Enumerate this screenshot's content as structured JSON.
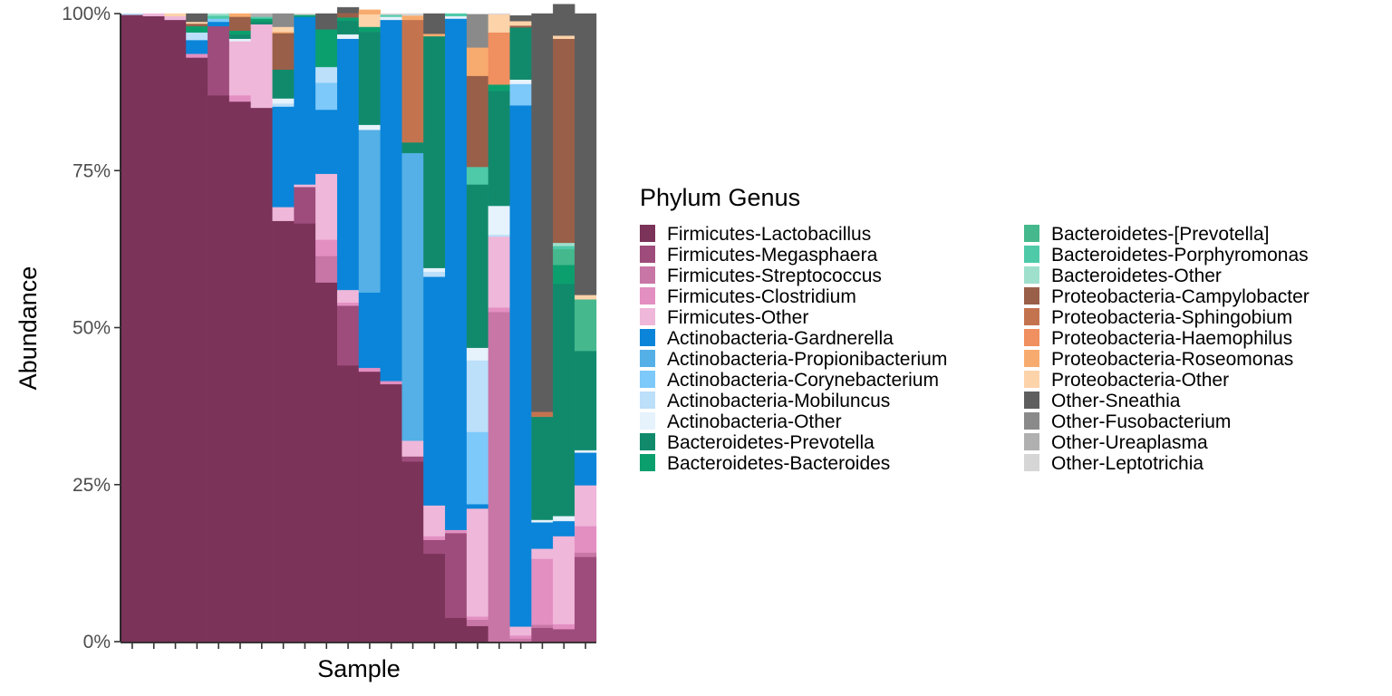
{
  "chart_data": {
    "type": "bar",
    "stacked": true,
    "xlabel": "Sample",
    "ylabel": "Abundance",
    "ylim": [
      0,
      100
    ],
    "y_ticks": [
      {
        "value": 0,
        "label": "0%"
      },
      {
        "value": 25,
        "label": "25%"
      },
      {
        "value": 50,
        "label": "50%"
      },
      {
        "value": 75,
        "label": "75%"
      },
      {
        "value": 100,
        "label": "100%"
      }
    ],
    "x_tick_labels_shown": false,
    "grid": false,
    "legend_title": "Phylum Genus",
    "legend_position": "right",
    "taxa": [
      {
        "name": "Firmicutes-Lactobacillus",
        "color": "#7b3359"
      },
      {
        "name": "Firmicutes-Megasphaera",
        "color": "#9e4c7b"
      },
      {
        "name": "Firmicutes-Streptococcus",
        "color": "#c876a6"
      },
      {
        "name": "Firmicutes-Clostridium",
        "color": "#e38fc2"
      },
      {
        "name": "Firmicutes-Other",
        "color": "#efb7d9"
      },
      {
        "name": "Actinobacteria-Gardnerella",
        "color": "#0a85d9"
      },
      {
        "name": "Actinobacteria-Propionibacterium",
        "color": "#54b0e6"
      },
      {
        "name": "Actinobacteria-Corynebacterium",
        "color": "#7dc9fa"
      },
      {
        "name": "Actinobacteria-Mobiluncus",
        "color": "#bcdffa"
      },
      {
        "name": "Actinobacteria-Other",
        "color": "#e6f2fc"
      },
      {
        "name": "Bacteroidetes-Prevotella",
        "color": "#118a6c"
      },
      {
        "name": "Bacteroidetes-Bacteroides",
        "color": "#0c9f6e"
      },
      {
        "name": "Bacteroidetes-[Prevotella]",
        "color": "#45b88d"
      },
      {
        "name": "Bacteroidetes-Porphyromonas",
        "color": "#4ecaa9"
      },
      {
        "name": "Bacteroidetes-Other",
        "color": "#9fe0cc"
      },
      {
        "name": "Proteobacteria-Campylobacter",
        "color": "#9a5f48"
      },
      {
        "name": "Proteobacteria-Sphingobium",
        "color": "#c4734f"
      },
      {
        "name": "Proteobacteria-Haemophilus",
        "color": "#f08f5f"
      },
      {
        "name": "Proteobacteria-Roseomonas",
        "color": "#f8ab6e"
      },
      {
        "name": "Proteobacteria-Other",
        "color": "#fdd3aa"
      },
      {
        "name": "Other-Sneathia",
        "color": "#5e5e5e"
      },
      {
        "name": "Other-Fusobacterium",
        "color": "#8a8a8a"
      },
      {
        "name": "Other-Ureaplasma",
        "color": "#b0b0b0"
      },
      {
        "name": "Other-Leptotrichia",
        "color": "#d6d6d6"
      }
    ],
    "series_note_keys": "each sample lists stacked segments bottom-to-top as [taxon, percent]",
    "samples": [
      [
        [
          "Firmicutes-Lactobacillus",
          99.8
        ],
        [
          "Actinobacteria-Mobiluncus",
          0.2
        ]
      ],
      [
        [
          "Firmicutes-Lactobacillus",
          99.6
        ],
        [
          "Firmicutes-Other",
          0.4
        ]
      ],
      [
        [
          "Firmicutes-Lactobacillus",
          99.0
        ],
        [
          "Firmicutes-Other",
          0.6
        ],
        [
          "Proteobacteria-Other",
          0.4
        ]
      ],
      [
        [
          "Firmicutes-Lactobacillus",
          93.0
        ],
        [
          "Firmicutes-Clostridium",
          0.6
        ],
        [
          "Actinobacteria-Gardnerella",
          2.2
        ],
        [
          "Actinobacteria-Mobiluncus",
          1.2
        ],
        [
          "Bacteroidetes-Bacteroides",
          1.0
        ],
        [
          "Proteobacteria-Campylobacter",
          0.4
        ],
        [
          "Proteobacteria-Other",
          0.3
        ],
        [
          "Other-Sneathia",
          1.3
        ]
      ],
      [
        [
          "Firmicutes-Lactobacillus",
          87.0
        ],
        [
          "Firmicutes-Megasphaera",
          11.0
        ],
        [
          "Actinobacteria-Gardnerella",
          0.7
        ],
        [
          "Actinobacteria-Corynebacterium",
          0.5
        ],
        [
          "Bacteroidetes-Porphyromonas",
          0.5
        ],
        [
          "Bacteroidetes-Other",
          0.3
        ]
      ],
      [
        [
          "Firmicutes-Lactobacillus",
          86.0
        ],
        [
          "Firmicutes-Clostridium",
          1.0
        ],
        [
          "Firmicutes-Other",
          8.6
        ],
        [
          "Actinobacteria-Other",
          0.4
        ],
        [
          "Bacteroidetes-Prevotella",
          0.7
        ],
        [
          "Bacteroidetes-Bacteroides",
          0.6
        ],
        [
          "Proteobacteria-Campylobacter",
          2.2
        ],
        [
          "Proteobacteria-Roseomonas",
          0.5
        ]
      ],
      [
        [
          "Firmicutes-Lactobacillus",
          85.0
        ],
        [
          "Firmicutes-Other",
          13.3
        ],
        [
          "Bacteroidetes-Prevotella",
          0.4
        ],
        [
          "Bacteroidetes-Bacteroides",
          0.5
        ],
        [
          "Bacteroidetes-Porphyromonas",
          0.3
        ],
        [
          "Other-Ureaplasma",
          0.5
        ]
      ],
      [
        [
          "Firmicutes-Lactobacillus",
          67.0
        ],
        [
          "Firmicutes-Other",
          2.2
        ],
        [
          "Actinobacteria-Gardnerella",
          16.0
        ],
        [
          "Actinobacteria-Mobiluncus",
          0.5
        ],
        [
          "Actinobacteria-Other",
          0.8
        ],
        [
          "Bacteroidetes-Prevotella",
          4.6
        ],
        [
          "Proteobacteria-Campylobacter",
          5.8
        ],
        [
          "Proteobacteria-Roseomonas",
          0.2
        ],
        [
          "Proteobacteria-Other",
          0.8
        ],
        [
          "Other-Fusobacterium",
          2.1
        ]
      ],
      [
        [
          "Firmicutes-Lactobacillus",
          66.6
        ],
        [
          "Firmicutes-Megasphaera",
          5.8
        ],
        [
          "Firmicutes-Other",
          0.4
        ],
        [
          "Actinobacteria-Gardnerella",
          26.7
        ],
        [
          "Bacteroidetes-Bacteroides",
          0.3
        ],
        [
          "Other-Leptotrichia",
          0.2
        ]
      ],
      [
        [
          "Firmicutes-Lactobacillus",
          57.2
        ],
        [
          "Firmicutes-Streptococcus",
          4.2
        ],
        [
          "Firmicutes-Clostridium",
          2.6
        ],
        [
          "Firmicutes-Other",
          10.5
        ],
        [
          "Actinobacteria-Gardnerella",
          10.2
        ],
        [
          "Actinobacteria-Corynebacterium",
          4.3
        ],
        [
          "Actinobacteria-Mobiluncus",
          2.5
        ],
        [
          "Bacteroidetes-Bacteroides",
          6.0
        ],
        [
          "Other-Sneathia",
          2.5
        ]
      ],
      [
        [
          "Firmicutes-Lactobacillus",
          44.0
        ],
        [
          "Firmicutes-Megasphaera",
          9.5
        ],
        [
          "Firmicutes-Clostridium",
          0.5
        ],
        [
          "Firmicutes-Other",
          2.0
        ],
        [
          "Actinobacteria-Gardnerella",
          40.0
        ],
        [
          "Actinobacteria-Other",
          0.7
        ],
        [
          "Bacteroidetes-Prevotella",
          2.2
        ],
        [
          "Bacteroidetes-Bacteroides",
          0.5
        ],
        [
          "Proteobacteria-Campylobacter",
          0.7
        ],
        [
          "Other-Sneathia",
          0.9
        ]
      ],
      [
        [
          "Firmicutes-Lactobacillus",
          43.0
        ],
        [
          "Firmicutes-Clostridium",
          0.6
        ],
        [
          "Actinobacteria-Gardnerella",
          12.0
        ],
        [
          "Actinobacteria-Propionibacterium",
          25.9
        ],
        [
          "Actinobacteria-Other",
          0.8
        ],
        [
          "Bacteroidetes-Prevotella",
          14.8
        ],
        [
          "Bacteroidetes-Bacteroides",
          0.8
        ],
        [
          "Proteobacteria-Other",
          2.0
        ],
        [
          "Proteobacteria-Roseomonas",
          0.7
        ]
      ],
      [
        [
          "Firmicutes-Lactobacillus",
          41.0
        ],
        [
          "Firmicutes-Clostridium",
          0.5
        ],
        [
          "Actinobacteria-Gardnerella",
          57.5
        ],
        [
          "Actinobacteria-Other",
          0.5
        ],
        [
          "Bacteroidetes-Porphyromonas",
          0.3
        ],
        [
          "Other-Leptotrichia",
          0.2
        ]
      ],
      [
        [
          "Firmicutes-Lactobacillus",
          28.7
        ],
        [
          "Firmicutes-Megasphaera",
          0.8
        ],
        [
          "Firmicutes-Other",
          2.5
        ],
        [
          "Actinobacteria-Propionibacterium",
          45.8
        ],
        [
          "Bacteroidetes-Prevotella",
          1.7
        ],
        [
          "Proteobacteria-Sphingobium",
          19.5
        ],
        [
          "Proteobacteria-Roseomonas",
          0.7
        ],
        [
          "Other-Leptotrichia",
          0.3
        ]
      ],
      [
        [
          "Firmicutes-Lactobacillus",
          14.0
        ],
        [
          "Firmicutes-Megasphaera",
          2.2
        ],
        [
          "Firmicutes-Clostridium",
          0.6
        ],
        [
          "Firmicutes-Other",
          4.9
        ],
        [
          "Actinobacteria-Gardnerella",
          36.4
        ],
        [
          "Actinobacteria-Mobiluncus",
          0.8
        ],
        [
          "Actinobacteria-Other",
          0.6
        ],
        [
          "Bacteroidetes-Prevotella",
          36.9
        ],
        [
          "Proteobacteria-Roseomonas",
          0.4
        ],
        [
          "Other-Sneathia",
          3.2
        ]
      ],
      [
        [
          "Firmicutes-Lactobacillus",
          3.8
        ],
        [
          "Firmicutes-Megasphaera",
          13.5
        ],
        [
          "Firmicutes-Clostridium",
          0.5
        ],
        [
          "Actinobacteria-Gardnerella",
          81.4
        ],
        [
          "Actinobacteria-Other",
          0.4
        ],
        [
          "Bacteroidetes-Porphyromonas",
          0.4
        ]
      ],
      [
        [
          "Firmicutes-Lactobacillus",
          2.5
        ],
        [
          "Firmicutes-Streptococcus",
          1.0
        ],
        [
          "Firmicutes-Clostridium",
          0.5
        ],
        [
          "Firmicutes-Other",
          17.2
        ],
        [
          "Actinobacteria-Gardnerella",
          0.7
        ],
        [
          "Actinobacteria-Corynebacterium",
          11.5
        ],
        [
          "Actinobacteria-Mobiluncus",
          11.4
        ],
        [
          "Actinobacteria-Other",
          2.0
        ],
        [
          "Bacteroidetes-Prevotella",
          26.0
        ],
        [
          "Bacteroidetes-Porphyromonas",
          2.8
        ],
        [
          "Proteobacteria-Campylobacter",
          14.5
        ],
        [
          "Proteobacteria-Roseomonas",
          4.5
        ],
        [
          "Other-Fusobacterium",
          5.3
        ]
      ],
      [
        [
          "Firmicutes-Streptococcus",
          52.5
        ],
        [
          "Firmicutes-Clostridium",
          0.7
        ],
        [
          "Firmicutes-Other",
          11.3
        ],
        [
          "Actinobacteria-Mobiluncus",
          0.3
        ],
        [
          "Actinobacteria-Other",
          4.6
        ],
        [
          "Bacteroidetes-Prevotella",
          18.3
        ],
        [
          "Bacteroidetes-Bacteroides",
          1.0
        ],
        [
          "Proteobacteria-Haemophilus",
          8.3
        ],
        [
          "Proteobacteria-Other",
          2.9
        ],
        [
          "Other-Leptotrichia",
          0.1
        ]
      ],
      [
        [
          "Firmicutes-Streptococcus",
          0.5
        ],
        [
          "Firmicutes-Clostridium",
          0.5
        ],
        [
          "Firmicutes-Other",
          1.4
        ],
        [
          "Actinobacteria-Gardnerella",
          83.0
        ],
        [
          "Actinobacteria-Corynebacterium",
          3.4
        ],
        [
          "Actinobacteria-Other",
          0.7
        ],
        [
          "Bacteroidetes-Prevotella",
          8.3
        ],
        [
          "Proteobacteria-Campylobacter",
          0.3
        ],
        [
          "Proteobacteria-Other",
          0.7
        ],
        [
          "Other-Sneathia",
          0.9
        ]
      ],
      [
        [
          "Firmicutes-Megasphaera",
          2.2
        ],
        [
          "Firmicutes-Streptococcus",
          0.5
        ],
        [
          "Firmicutes-Clostridium",
          10.5
        ],
        [
          "Firmicutes-Other",
          1.6
        ],
        [
          "Actinobacteria-Gardnerella",
          4.2
        ],
        [
          "Actinobacteria-Other",
          0.4
        ],
        [
          "Bacteroidetes-Prevotella",
          16.4
        ],
        [
          "Proteobacteria-Sphingobium",
          0.8
        ],
        [
          "Other-Sneathia",
          63.4
        ]
      ],
      [
        [
          "Firmicutes-Megasphaera",
          2.0
        ],
        [
          "Firmicutes-Clostridium",
          0.8
        ],
        [
          "Firmicutes-Other",
          14.0
        ],
        [
          "Actinobacteria-Gardnerella",
          2.4
        ],
        [
          "Actinobacteria-Other",
          0.8
        ],
        [
          "Bacteroidetes-Prevotella",
          37.0
        ],
        [
          "Bacteroidetes-Bacteroides",
          3.0
        ],
        [
          "Bacteroidetes-[Prevotella]",
          2.5
        ],
        [
          "Bacteroidetes-Porphyromonas",
          0.5
        ],
        [
          "Bacteroidetes-Other",
          0.5
        ],
        [
          "Proteobacteria-Campylobacter",
          32.5
        ],
        [
          "Proteobacteria-Other",
          0.5
        ],
        [
          "Other-Sneathia",
          5.0
        ]
      ],
      [
        [
          "Firmicutes-Megasphaera",
          13.5
        ],
        [
          "Firmicutes-Streptococcus",
          0.7
        ],
        [
          "Firmicutes-Clostridium",
          4.2
        ],
        [
          "Firmicutes-Other",
          6.5
        ],
        [
          "Actinobacteria-Gardnerella",
          5.2
        ],
        [
          "Actinobacteria-Other",
          0.4
        ],
        [
          "Bacteroidetes-Prevotella",
          15.8
        ],
        [
          "Bacteroidetes-[Prevotella]",
          8.2
        ],
        [
          "Proteobacteria-Other",
          0.7
        ],
        [
          "Other-Sneathia",
          44.8
        ]
      ]
    ]
  }
}
